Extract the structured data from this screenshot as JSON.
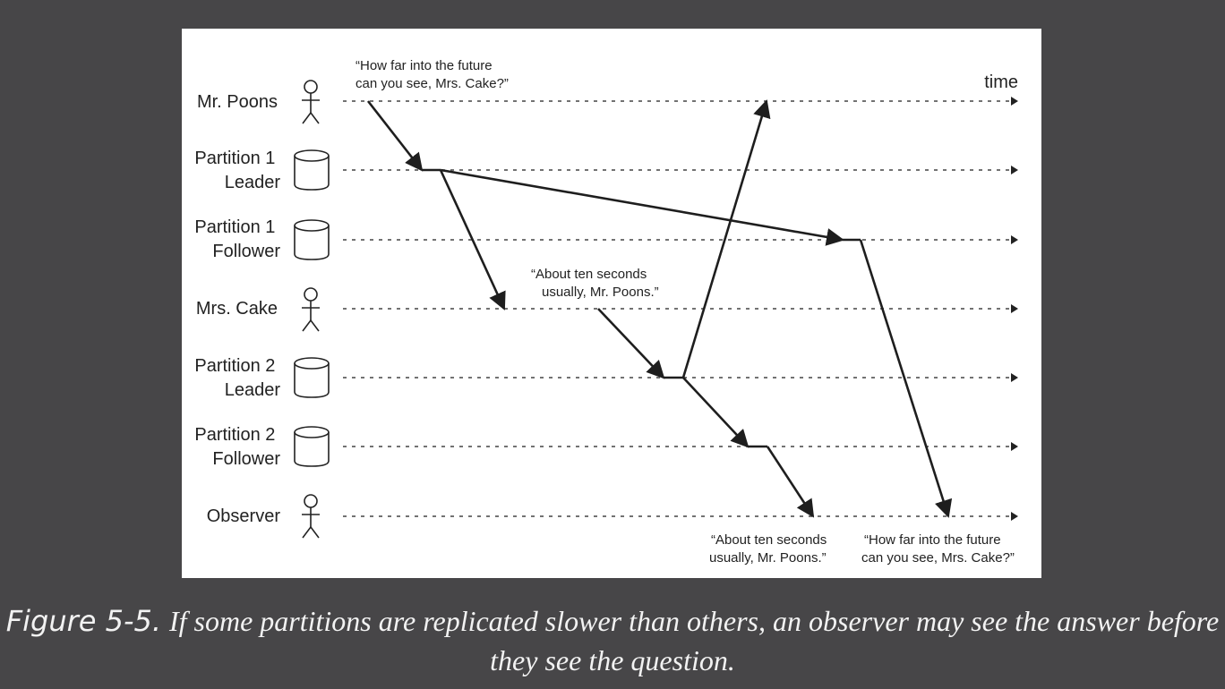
{
  "time_label": "time",
  "lanes": [
    {
      "name": "mr-poons",
      "lines": [
        "Mr. Poons"
      ],
      "icon": "person-icon"
    },
    {
      "name": "partition-1-leader",
      "lines": [
        "Partition 1",
        "Leader"
      ],
      "icon": "database-icon"
    },
    {
      "name": "partition-1-follower",
      "lines": [
        "Partition 1",
        "Follower"
      ],
      "icon": "database-icon"
    },
    {
      "name": "mrs-cake",
      "lines": [
        "Mrs. Cake"
      ],
      "icon": "person-icon"
    },
    {
      "name": "partition-2-leader",
      "lines": [
        "Partition 2",
        "Leader"
      ],
      "icon": "database-icon"
    },
    {
      "name": "partition-2-follower",
      "lines": [
        "Partition 2",
        "Follower"
      ],
      "icon": "database-icon"
    },
    {
      "name": "observer",
      "lines": [
        "Observer"
      ],
      "icon": "person-icon"
    }
  ],
  "quotes": {
    "question_top": [
      "“How far into the future",
      "can you see, Mrs. Cake?”"
    ],
    "answer_mid": [
      "“About ten seconds",
      "usually, Mr. Poons.”"
    ],
    "answer_bottom": [
      "“About ten seconds",
      "usually, Mr. Poons.”"
    ],
    "question_bottom": [
      "“How far into the future",
      "can you see, Mrs. Cake?”"
    ]
  },
  "caption": {
    "figure_number": "Figure 5-5.",
    "text": "If some partitions are replicated slower than others, an observer may see the answer before they see the question."
  }
}
